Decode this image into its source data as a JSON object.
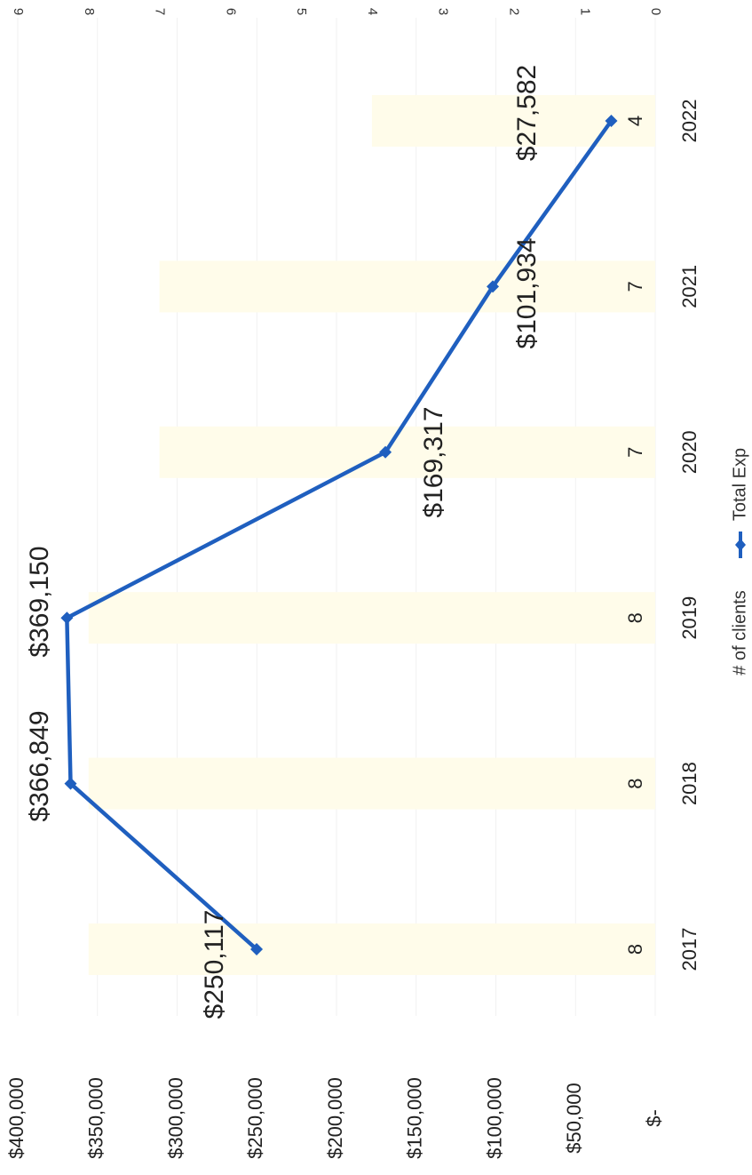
{
  "chart_data": {
    "type": "bar",
    "orientation": "rotated 90° clockwise",
    "categories": [
      "2017",
      "2018",
      "2019",
      "2020",
      "2021",
      "2022"
    ],
    "series": [
      {
        "name": "# of clients",
        "type": "bar",
        "axis": "secondary",
        "values": [
          8,
          8,
          8,
          7,
          7,
          4
        ],
        "data_labels": [
          "8",
          "8",
          "8",
          "7",
          "7",
          "4"
        ],
        "color": "#fffcea"
      },
      {
        "name": "Total Exp",
        "type": "line",
        "axis": "primary",
        "marker": "diamond",
        "values": [
          250117,
          366849,
          369150,
          169317,
          101934,
          27582
        ],
        "data_labels": [
          "$250,117",
          "$366,849",
          "$369,150",
          "$169,317",
          "$101,934",
          "$27,582"
        ],
        "color": "#1f5fbf"
      }
    ],
    "primary_axis": {
      "ylim": [
        0,
        400000
      ],
      "ticks": [
        0,
        50000,
        100000,
        150000,
        200000,
        250000,
        300000,
        350000,
        400000
      ],
      "tick_labels": [
        "$-",
        "$50,000",
        "$100,000",
        "$150,000",
        "$200,000",
        "$250,000",
        "$300,000",
        "$350,000",
        "$400,000"
      ]
    },
    "secondary_axis": {
      "ylim": [
        0,
        9
      ],
      "ticks": [
        0,
        1,
        2,
        3,
        4,
        5,
        6,
        7,
        8,
        9
      ],
      "tick_labels": [
        "0",
        "1",
        "2",
        "3",
        "4",
        "5",
        "6",
        "7",
        "8",
        "9"
      ]
    },
    "grid": true,
    "legend": {
      "position": "bottom",
      "entries": [
        "# of clients",
        "Total Exp"
      ]
    }
  }
}
